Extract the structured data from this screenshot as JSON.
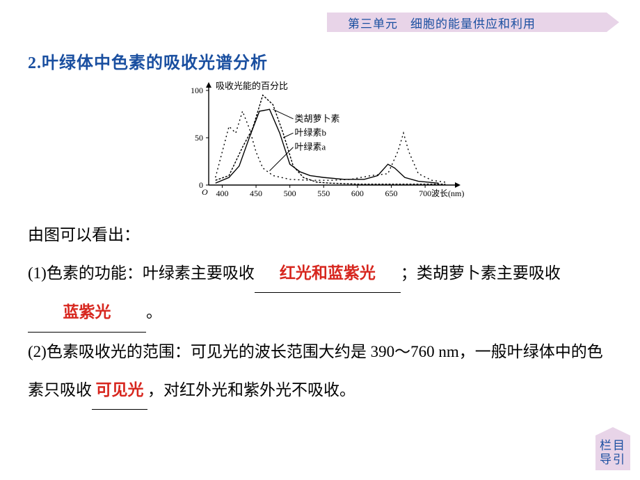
{
  "header": {
    "unit": "第三单元　细胞的能量供应和利用"
  },
  "title": "2.叶绿体中色素的吸收光谱分析",
  "chart": {
    "type": "line",
    "y_label": "吸收光能的百分比",
    "x_label": "波长(nm)",
    "xlim": [
      380,
      740
    ],
    "ylim": [
      0,
      100
    ],
    "yticks": [
      0,
      50,
      100
    ],
    "xticks": [
      400,
      450,
      500,
      550,
      600,
      650,
      700
    ],
    "background_color": "#ffffff",
    "axis_color": "#000000",
    "stroke_width": 1.4,
    "fontsize": 12,
    "series": [
      {
        "name": "类胡萝卜素",
        "label": "类胡萝卜素",
        "dash": "3,2",
        "color": "#000000",
        "points": [
          [
            390,
            5
          ],
          [
            410,
            10
          ],
          [
            430,
            40
          ],
          [
            445,
            60
          ],
          [
            460,
            95
          ],
          [
            475,
            85
          ],
          [
            490,
            55
          ],
          [
            505,
            20
          ],
          [
            520,
            8
          ],
          [
            540,
            3
          ],
          [
            560,
            2
          ],
          [
            600,
            1
          ],
          [
            650,
            1
          ],
          [
            700,
            1
          ],
          [
            730,
            1
          ]
        ]
      },
      {
        "name": "叶绿素b",
        "label": "叶绿素b",
        "dash": "",
        "color": "#000000",
        "points": [
          [
            390,
            2
          ],
          [
            410,
            8
          ],
          [
            425,
            20
          ],
          [
            440,
            50
          ],
          [
            455,
            78
          ],
          [
            470,
            80
          ],
          [
            485,
            55
          ],
          [
            500,
            22
          ],
          [
            515,
            14
          ],
          [
            530,
            10
          ],
          [
            550,
            8
          ],
          [
            580,
            6
          ],
          [
            610,
            6
          ],
          [
            630,
            10
          ],
          [
            645,
            22
          ],
          [
            655,
            18
          ],
          [
            670,
            8
          ],
          [
            690,
            4
          ],
          [
            720,
            2
          ]
        ]
      },
      {
        "name": "叶绿素a",
        "label": "叶绿素a",
        "dash": "2,4",
        "color": "#000000",
        "points": [
          [
            390,
            8
          ],
          [
            400,
            35
          ],
          [
            410,
            62
          ],
          [
            420,
            55
          ],
          [
            430,
            78
          ],
          [
            440,
            60
          ],
          [
            450,
            35
          ],
          [
            460,
            18
          ],
          [
            475,
            10
          ],
          [
            500,
            6
          ],
          [
            530,
            5
          ],
          [
            560,
            5
          ],
          [
            590,
            6
          ],
          [
            620,
            10
          ],
          [
            645,
            12
          ],
          [
            660,
            36
          ],
          [
            668,
            55
          ],
          [
            676,
            35
          ],
          [
            690,
            12
          ],
          [
            710,
            5
          ],
          [
            730,
            3
          ]
        ]
      }
    ],
    "legends_at": [
      [
        505,
        70,
        "类胡萝卜素"
      ],
      [
        505,
        55,
        "叶绿素b"
      ],
      [
        505,
        40,
        "叶绿素a"
      ]
    ]
  },
  "body": {
    "lead": "由图可以看出：",
    "p1a": "(1)色素的功能：叶绿素主要吸收",
    "ans1": "红光和蓝紫光",
    "p1b": "；类胡萝卜素主要吸收",
    "ans2": "蓝紫光",
    "p1c": "。",
    "p2a": "(2)色素吸收光的范围：可见光的波长范围大约是 390～760 nm，一般叶绿体中的色素只吸收",
    "ans3": "可见光",
    "p2b": "，对红外光和紫外光不吸收。"
  },
  "nav": {
    "l1": "栏目",
    "l2": "导引"
  },
  "blanks": {
    "w1": 210,
    "w2": 170,
    "w3": 80
  }
}
